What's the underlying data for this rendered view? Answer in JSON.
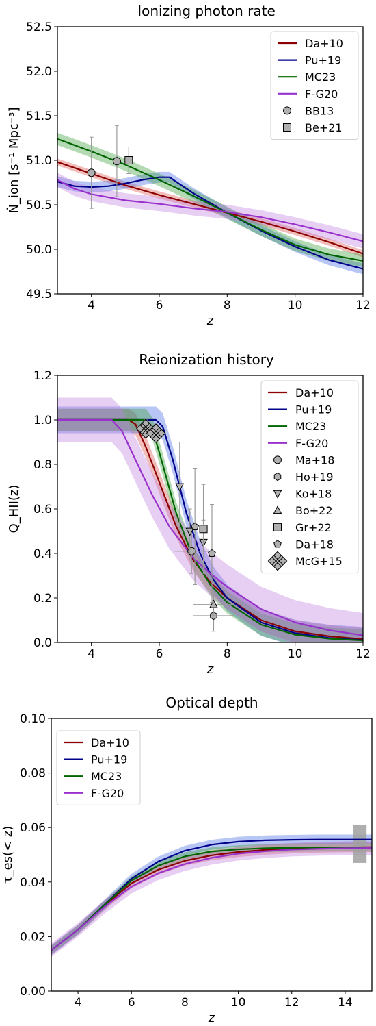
{
  "chart_data": [
    {
      "type": "line",
      "title": "Ionizing photon rate",
      "xlabel": "z",
      "ylabel": "Ṅ_ion [s⁻¹ Mpc⁻³]",
      "xlim": [
        3,
        12
      ],
      "ylim": [
        49.5,
        52.5
      ],
      "xticks": [
        4,
        6,
        8,
        10,
        12
      ],
      "yticks": [
        49.5,
        50.0,
        50.5,
        51.0,
        51.5,
        52.0,
        52.5
      ],
      "ytick_labels": [
        "49.5",
        "50.0",
        "50.5",
        "51.0",
        "51.5",
        "52.0",
        "52.5"
      ],
      "legend_position": "top-right",
      "series": [
        {
          "name": "Da+10",
          "color": "#8b0000",
          "band_color": "#d9534f",
          "x": [
            3,
            4,
            5,
            6,
            7,
            8,
            9,
            10,
            11,
            12
          ],
          "y": [
            50.98,
            50.85,
            50.72,
            50.61,
            50.51,
            50.41,
            50.31,
            50.2,
            50.08,
            49.95
          ],
          "band": 0.04
        },
        {
          "name": "Pu+19",
          "color": "#00008b",
          "band_color": "#4169e1",
          "x": [
            3,
            3.5,
            4,
            4.5,
            5,
            5.5,
            6,
            6.3,
            7,
            8,
            9,
            10,
            11,
            12
          ],
          "y": [
            50.76,
            50.71,
            50.7,
            50.71,
            50.74,
            50.78,
            50.81,
            50.81,
            50.63,
            50.41,
            50.21,
            50.03,
            49.88,
            49.78
          ],
          "band": 0.06
        },
        {
          "name": "MC23",
          "color": "#006400",
          "band_color": "#3a9e3a",
          "x": [
            3,
            4,
            5,
            6,
            7,
            8,
            9,
            10,
            11,
            12
          ],
          "y": [
            51.24,
            51.1,
            50.95,
            50.78,
            50.6,
            50.41,
            50.22,
            50.05,
            49.94,
            49.87
          ],
          "band": 0.07
        },
        {
          "name": "F-G20",
          "color": "#9932cc",
          "band_color": "#c07fe0",
          "x": [
            3,
            3.5,
            4,
            5,
            6,
            7,
            8,
            9,
            10,
            11,
            12
          ],
          "y": [
            50.78,
            50.68,
            50.62,
            50.55,
            50.51,
            50.46,
            50.42,
            50.36,
            50.28,
            50.19,
            50.09
          ],
          "band": 0.08
        }
      ],
      "points": [
        {
          "name": "BB13",
          "marker": "circle",
          "x": [
            4.0,
            4.75
          ],
          "y": [
            50.86,
            50.99
          ],
          "yerr": [
            0.4,
            0.4
          ]
        },
        {
          "name": "Be+21",
          "marker": "square",
          "x": [
            5.1
          ],
          "y": [
            51.0
          ],
          "yerr": [
            0.15
          ]
        }
      ]
    },
    {
      "type": "line",
      "title": "Reionization history",
      "xlabel": "z",
      "ylabel": "Q_HII(z)",
      "xlim": [
        3,
        12
      ],
      "ylim": [
        0,
        1.2
      ],
      "xticks": [
        4,
        6,
        8,
        10,
        12
      ],
      "yticks": [
        0.0,
        0.2,
        0.4,
        0.6,
        0.8,
        1.0,
        1.2
      ],
      "ytick_labels": [
        "0.0",
        "0.2",
        "0.4",
        "0.6",
        "0.8",
        "1.0",
        "1.2"
      ],
      "legend_position": "top-right",
      "series": [
        {
          "name": "Da+10",
          "color": "#8b0000",
          "band_color": "#d9534f",
          "x": [
            3,
            5.1,
            5.3,
            5.6,
            6,
            6.5,
            7,
            7.5,
            8,
            9,
            10,
            11,
            12
          ],
          "y": [
            1,
            1,
            0.98,
            0.88,
            0.72,
            0.52,
            0.37,
            0.27,
            0.2,
            0.1,
            0.05,
            0.028,
            0.015
          ],
          "band": 0.05
        },
        {
          "name": "Pu+19",
          "color": "#00008b",
          "band_color": "#4169e1",
          "x": [
            3,
            5.9,
            6.1,
            6.4,
            6.8,
            7.2,
            7.6,
            8,
            9,
            10,
            11,
            12
          ],
          "y": [
            1,
            1,
            0.97,
            0.82,
            0.58,
            0.4,
            0.28,
            0.2,
            0.09,
            0.042,
            0.02,
            0.01
          ],
          "band": 0.06
        },
        {
          "name": "MC23",
          "color": "#006400",
          "band_color": "#3a9e3a",
          "x": [
            3,
            5.6,
            5.8,
            6.1,
            6.5,
            7,
            7.5,
            8,
            9,
            10,
            11,
            12
          ],
          "y": [
            1,
            1,
            0.96,
            0.8,
            0.58,
            0.38,
            0.26,
            0.18,
            0.08,
            0.035,
            0.017,
            0.009
          ],
          "band": 0.05
        },
        {
          "name": "F-G20",
          "color": "#9932cc",
          "band_color": "#c07fe0",
          "x": [
            3,
            4.6,
            4.9,
            5.3,
            5.8,
            6.3,
            7,
            7.5,
            8,
            9,
            10,
            11,
            12
          ],
          "y": [
            1,
            1,
            0.95,
            0.82,
            0.66,
            0.52,
            0.38,
            0.31,
            0.25,
            0.15,
            0.09,
            0.055,
            0.032
          ],
          "band": 0.1
        }
      ],
      "points": [
        {
          "name": "Ma+18",
          "marker": "circle",
          "x": [
            6.95
          ],
          "y": [
            0.41
          ],
          "yerr": [
            0.1
          ],
          "xerr": [
            0.5
          ]
        },
        {
          "name": "Ho+19",
          "marker": "hexagon",
          "x": [
            7.6
          ],
          "y": [
            0.12
          ],
          "yerr": [
            0.07
          ],
          "xerr": [
            0.6
          ]
        },
        {
          "name": "Ko+18",
          "marker": "triangle-down",
          "x": [
            6.6,
            6.9,
            7.3
          ],
          "y": [
            0.7,
            0.5,
            0.45
          ],
          "yerr": [
            0.2,
            0.1,
            0.1
          ]
        },
        {
          "name": "Bo+22",
          "marker": "triangle-up",
          "x": [
            7.6
          ],
          "y": [
            0.17
          ],
          "yerr": [
            0.05
          ],
          "xerr": [
            0.6
          ]
        },
        {
          "name": "Gr+22",
          "marker": "square",
          "x": [
            7.3
          ],
          "y": [
            0.51
          ],
          "yerr": [
            0.2
          ]
        },
        {
          "name": "Da+18",
          "marker": "pentagon",
          "x": [
            7.05,
            7.55
          ],
          "y": [
            0.52,
            0.4
          ],
          "yerr": [
            0.26,
            0.22
          ]
        },
        {
          "name": "McG+15",
          "marker": "x",
          "x": [
            5.6,
            5.9
          ],
          "y": [
            0.96,
            0.94
          ],
          "yerr": [
            0.04,
            0.04
          ]
        }
      ]
    },
    {
      "type": "line",
      "title": "Optical depth",
      "xlabel": "z",
      "ylabel": "τ_es(< z)",
      "xlim": [
        3,
        15
      ],
      "ylim": [
        0,
        0.1
      ],
      "xticks": [
        4,
        6,
        8,
        10,
        12,
        14
      ],
      "yticks": [
        0.0,
        0.02,
        0.04,
        0.06,
        0.08,
        0.1
      ],
      "ytick_labels": [
        "0.00",
        "0.02",
        "0.04",
        "0.06",
        "0.08",
        "0.10"
      ],
      "legend_position": "top-left",
      "series": [
        {
          "name": "Da+10",
          "color": "#8b0000",
          "band_color": "#d9534f",
          "x": [
            3,
            4,
            5,
            6,
            7,
            8,
            9,
            10,
            11,
            12,
            13,
            14,
            15
          ],
          "y": [
            0.015,
            0.0225,
            0.0315,
            0.0395,
            0.0445,
            0.0478,
            0.0498,
            0.051,
            0.0518,
            0.0523,
            0.0526,
            0.0527,
            0.0528
          ],
          "band": 0.0018
        },
        {
          "name": "Pu+19",
          "color": "#00008b",
          "band_color": "#4169e1",
          "x": [
            3,
            4,
            5,
            6,
            7,
            8,
            9,
            10,
            11,
            12,
            13,
            14,
            15
          ],
          "y": [
            0.015,
            0.0225,
            0.0318,
            0.0412,
            0.0475,
            0.0515,
            0.0537,
            0.0548,
            0.0553,
            0.0555,
            0.0556,
            0.0556,
            0.0556
          ],
          "band": 0.0018
        },
        {
          "name": "MC23",
          "color": "#006400",
          "band_color": "#3a9e3a",
          "x": [
            3,
            4,
            5,
            6,
            7,
            8,
            9,
            10,
            11,
            12,
            13,
            14,
            15
          ],
          "y": [
            0.015,
            0.0225,
            0.0317,
            0.0405,
            0.046,
            0.0494,
            0.0512,
            0.052,
            0.0524,
            0.0526,
            0.0527,
            0.0527,
            0.0527
          ],
          "band": 0.0015
        },
        {
          "name": "F-G20",
          "color": "#9932cc",
          "band_color": "#c07fe0",
          "x": [
            3,
            4,
            5,
            6,
            7,
            8,
            9,
            10,
            11,
            12,
            13,
            14,
            15
          ],
          "y": [
            0.015,
            0.0225,
            0.031,
            0.0383,
            0.0432,
            0.0466,
            0.0489,
            0.0504,
            0.0513,
            0.0519,
            0.0522,
            0.0524,
            0.0525
          ],
          "band": 0.0025
        }
      ],
      "bands": [
        {
          "x": [
            14.3,
            14.8
          ],
          "y": [
            0.047,
            0.061
          ],
          "color": "#a0a0a0"
        }
      ]
    }
  ]
}
